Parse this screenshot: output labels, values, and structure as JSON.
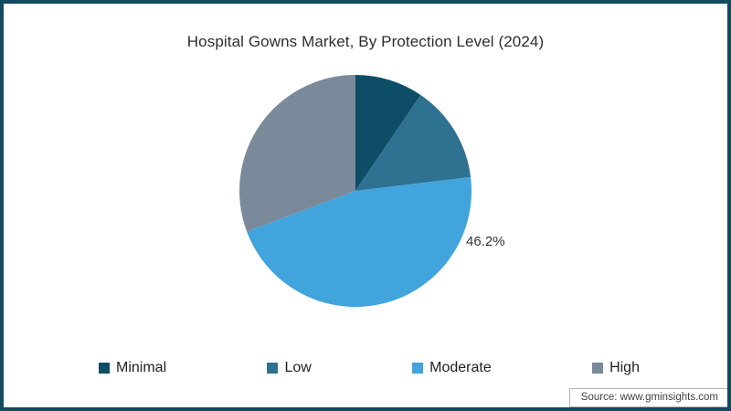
{
  "frame": {
    "border_color": "#114a61",
    "background": "#ffffff"
  },
  "title": "Hospital Gowns Market, By Protection Level (2024)",
  "chart_data": {
    "type": "pie",
    "title": "Hospital Gowns Market, By Protection Level (2024)",
    "categories": [
      "Minimal",
      "Low",
      "Moderate",
      "High"
    ],
    "values": [
      9.5,
      13.6,
      46.2,
      30.7
    ],
    "colors": [
      "#0d4e66",
      "#2f7190",
      "#41a4dc",
      "#7b8a9b"
    ],
    "unit": "%",
    "start_angle_deg": 0,
    "direction": "clockwise",
    "data_labels": [
      {
        "category": "Moderate",
        "text": "46.2%"
      }
    ],
    "legend_position": "bottom"
  },
  "annotation": {
    "moderate_pct_label": "46.2%"
  },
  "legend": {
    "items": [
      {
        "label": "Minimal",
        "color": "#0d4e66"
      },
      {
        "label": "Low",
        "color": "#2f7190"
      },
      {
        "label": "Moderate",
        "color": "#41a4dc"
      },
      {
        "label": "High",
        "color": "#7b8a9b"
      }
    ]
  },
  "footer": {
    "source": "Source: www.gminsights.com"
  }
}
